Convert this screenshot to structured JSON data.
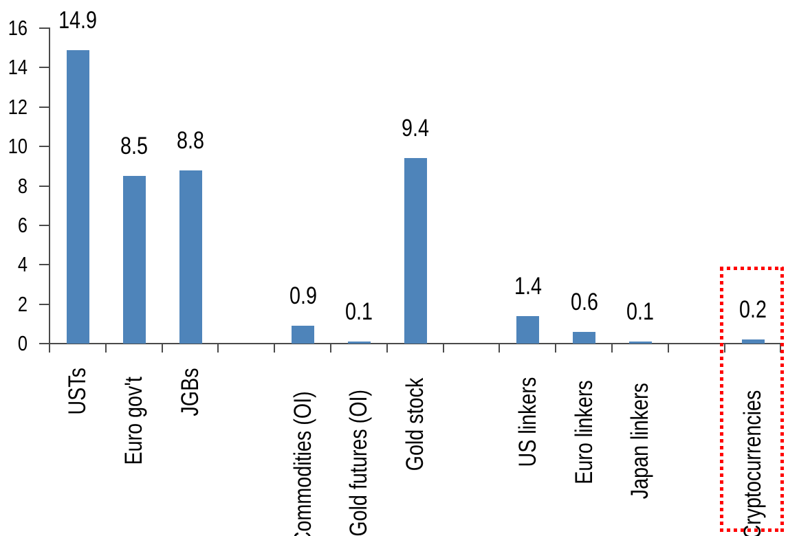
{
  "chart_data": {
    "type": "bar",
    "categories": [
      "USTs",
      "Euro gov't",
      "JGBs",
      "Commodities (OI)",
      "Gold futures (OI)",
      "Gold stock",
      "US linkers",
      "Euro linkers",
      "Japan linkers",
      "Cryptocurrencies"
    ],
    "values": [
      14.9,
      8.5,
      8.8,
      0.9,
      0.1,
      9.4,
      1.4,
      0.6,
      0.1,
      0.2
    ],
    "data_labels": [
      "14.9",
      "8.5",
      "8.8",
      "0.9",
      "0.1",
      "9.4",
      "1.4",
      "0.6",
      "0.1",
      "0.2"
    ],
    "slot_indices": [
      0,
      1,
      2,
      4,
      5,
      6,
      8,
      9,
      10,
      12
    ],
    "total_slots": 13,
    "yticks": [
      0,
      2,
      4,
      6,
      8,
      10,
      12,
      14,
      16
    ],
    "ytick_labels": [
      "0",
      "2",
      "4",
      "6",
      "8",
      "10",
      "12",
      "14",
      "16"
    ],
    "ylim": [
      0,
      16
    ],
    "grid": false,
    "legend": false,
    "bar_color": "#4E84BA",
    "axis_color": "#4A4A4A",
    "text_color": "#000000",
    "highlight": {
      "category": "Cryptocurrencies",
      "box_color": "#FF0000",
      "box_style": "dotted-square"
    }
  }
}
